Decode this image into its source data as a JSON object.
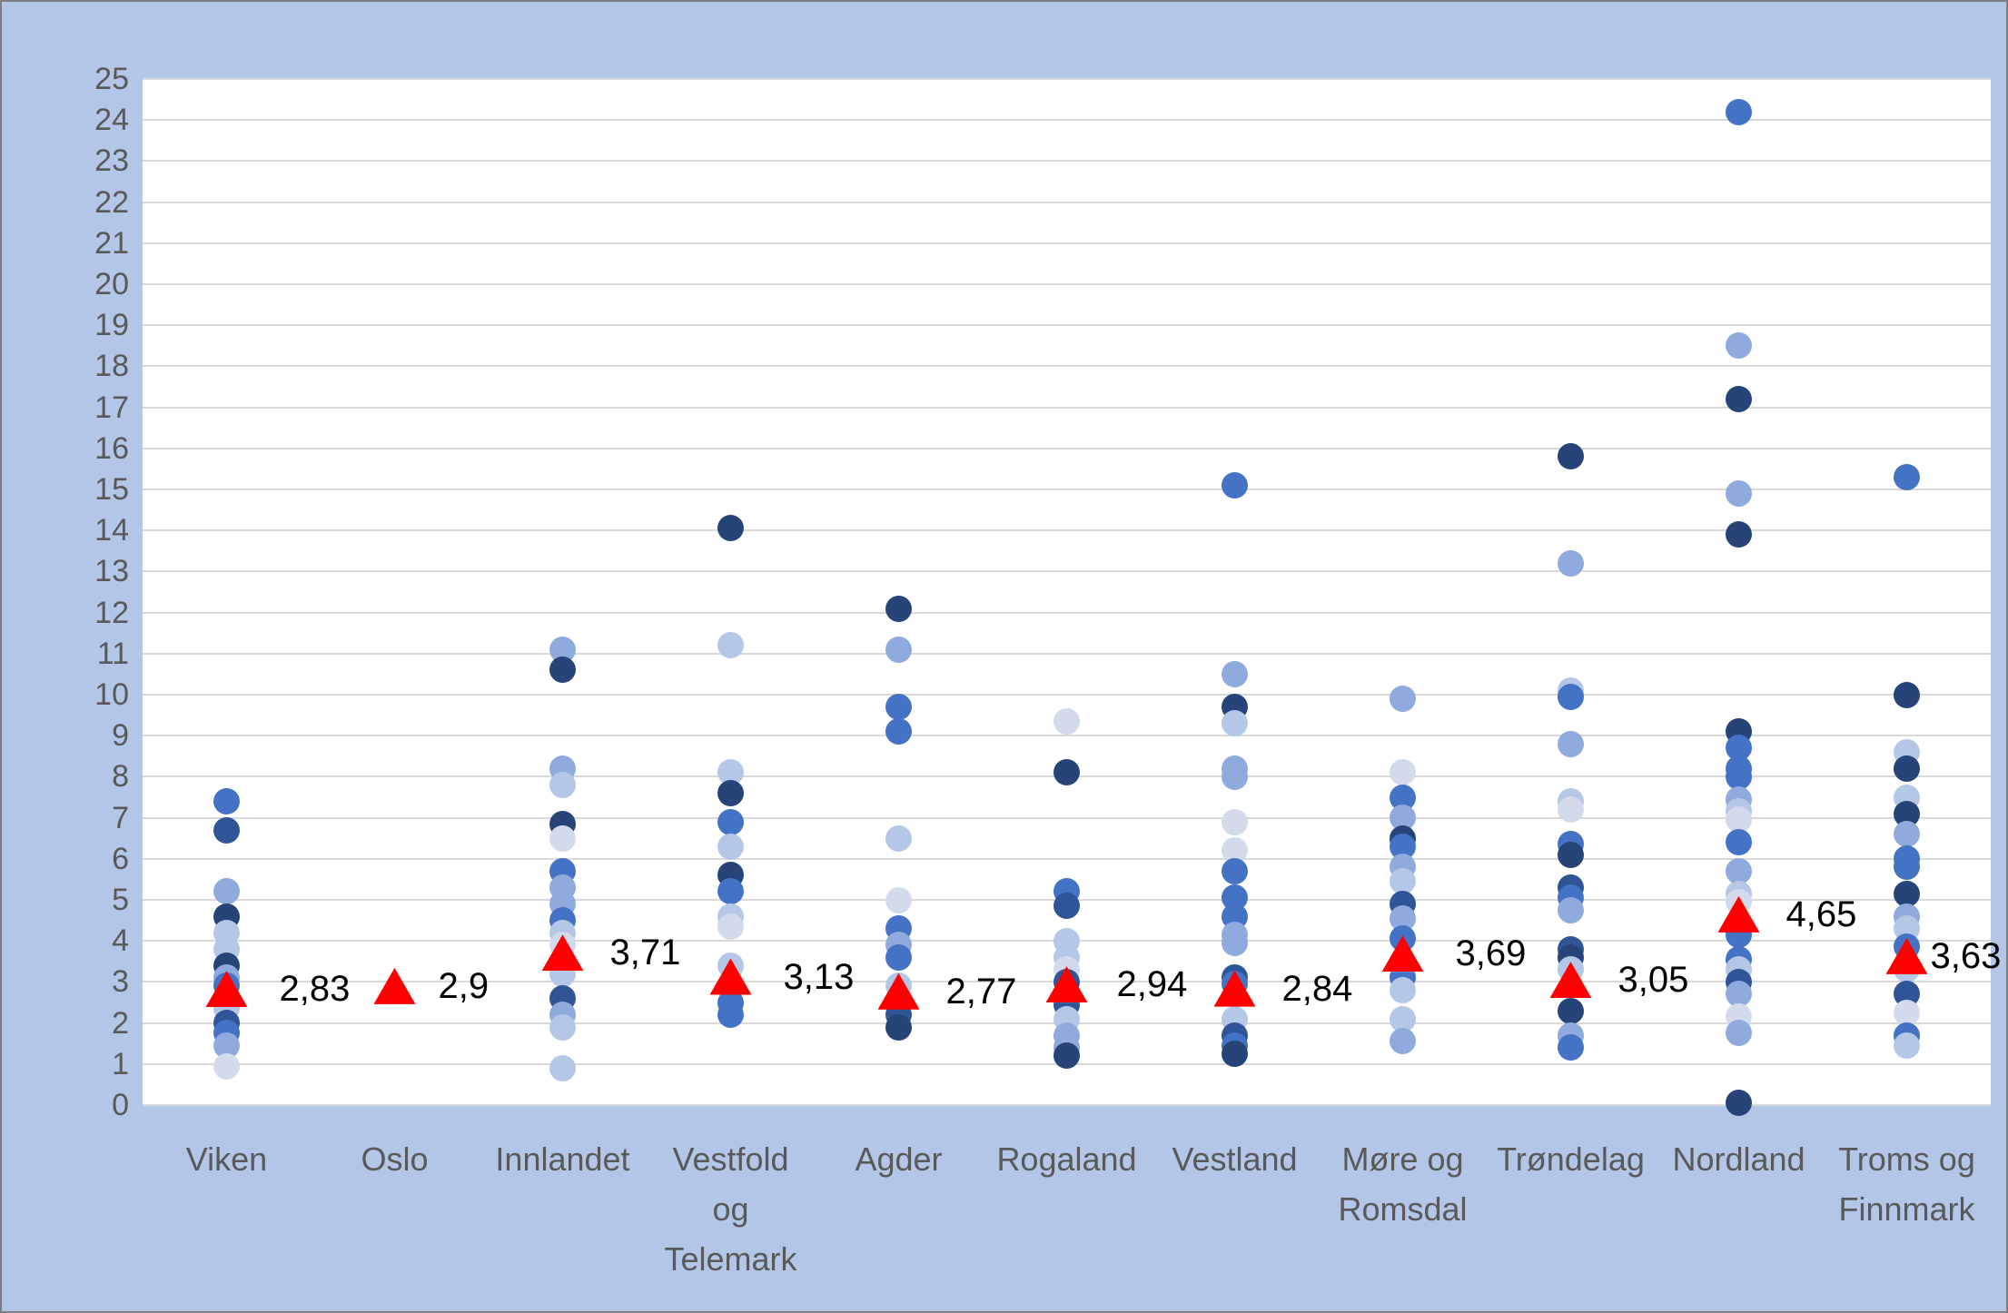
{
  "chart_data": {
    "type": "scatter",
    "title": "",
    "xlabel": "",
    "ylabel": "",
    "ylim": [
      0,
      25
    ],
    "ytick_step": 1,
    "yticks": [
      0,
      1,
      2,
      3,
      4,
      5,
      6,
      7,
      8,
      9,
      10,
      11,
      12,
      13,
      14,
      15,
      16,
      17,
      18,
      19,
      20,
      21,
      22,
      23,
      24,
      25
    ],
    "grid": "horizontal-major",
    "legend": "none",
    "marker_note": "blue circles = individual values per county; red triangle = county mean with data label (comma decimal)",
    "categories": [
      "Viken",
      "Oslo",
      "Innlandet",
      "Vestfold og Telemark",
      "Agder",
      "Rogaland",
      "Vestland",
      "Møre og Romsdal",
      "Trøndelag",
      "Nordland",
      "Troms og Finnmark"
    ],
    "counties": [
      {
        "name": "Viken",
        "name_lines": [
          "Viken"
        ],
        "mean": 2.83,
        "mean_label": "2,83",
        "label_dx": 58,
        "points": [
          {
            "v": 7.4,
            "c": "medium"
          },
          {
            "v": 6.7,
            "c": "mediumdark"
          },
          {
            "v": 5.2,
            "c": "mediumlight"
          },
          {
            "v": 4.6,
            "c": "dark"
          },
          {
            "v": 4.2,
            "c": "light"
          },
          {
            "v": 3.8,
            "c": "light"
          },
          {
            "v": 3.4,
            "c": "dark"
          },
          {
            "v": 3.1,
            "c": "mediumlight"
          },
          {
            "v": 2.9,
            "c": "medium"
          },
          {
            "v": 2.6,
            "c": "mediumdark"
          },
          {
            "v": 2.35,
            "c": "light"
          },
          {
            "v": 2.0,
            "c": "mediumdark"
          },
          {
            "v": 1.75,
            "c": "medium"
          },
          {
            "v": 1.45,
            "c": "mediumlight"
          },
          {
            "v": 0.95,
            "c": "verylight"
          }
        ]
      },
      {
        "name": "Oslo",
        "name_lines": [
          "Oslo"
        ],
        "mean": 2.9,
        "mean_label": "2,9",
        "label_dx": 48,
        "points": []
      },
      {
        "name": "Innlandet",
        "name_lines": [
          "Innlandet"
        ],
        "mean": 3.71,
        "mean_label": "3,71",
        "label_dx": 52,
        "points": [
          {
            "v": 11.1,
            "c": "mediumlight"
          },
          {
            "v": 10.6,
            "c": "dark"
          },
          {
            "v": 8.2,
            "c": "mediumlight"
          },
          {
            "v": 7.8,
            "c": "light"
          },
          {
            "v": 6.85,
            "c": "dark"
          },
          {
            "v": 6.5,
            "c": "verylight"
          },
          {
            "v": 5.7,
            "c": "medium"
          },
          {
            "v": 5.3,
            "c": "mediumlight"
          },
          {
            "v": 4.9,
            "c": "mediumlight"
          },
          {
            "v": 4.5,
            "c": "medium"
          },
          {
            "v": 4.2,
            "c": "light"
          },
          {
            "v": 3.9,
            "c": "verylight"
          },
          {
            "v": 3.5,
            "c": "mediumdark"
          },
          {
            "v": 3.2,
            "c": "light"
          },
          {
            "v": 2.6,
            "c": "mediumdark"
          },
          {
            "v": 2.2,
            "c": "mediumlight"
          },
          {
            "v": 1.9,
            "c": "light"
          },
          {
            "v": 0.9,
            "c": "light"
          }
        ]
      },
      {
        "name": "Vestfold og Telemark",
        "name_lines": [
          "Vestfold",
          "og",
          "Telemark"
        ],
        "mean": 3.13,
        "mean_label": "3,13",
        "label_dx": 58,
        "points": [
          {
            "v": 14.05,
            "c": "dark"
          },
          {
            "v": 11.2,
            "c": "light"
          },
          {
            "v": 8.1,
            "c": "light"
          },
          {
            "v": 7.6,
            "c": "dark"
          },
          {
            "v": 6.9,
            "c": "medium"
          },
          {
            "v": 6.3,
            "c": "light"
          },
          {
            "v": 5.6,
            "c": "dark"
          },
          {
            "v": 5.2,
            "c": "medium"
          },
          {
            "v": 4.6,
            "c": "light"
          },
          {
            "v": 4.35,
            "c": "verylight"
          },
          {
            "v": 3.4,
            "c": "light"
          },
          {
            "v": 2.5,
            "c": "medium"
          },
          {
            "v": 2.2,
            "c": "medium"
          }
        ]
      },
      {
        "name": "Agder",
        "name_lines": [
          "Agder"
        ],
        "mean": 2.77,
        "mean_label": "2,77",
        "label_dx": 52,
        "points": [
          {
            "v": 12.1,
            "c": "dark"
          },
          {
            "v": 11.1,
            "c": "mediumlight"
          },
          {
            "v": 9.7,
            "c": "medium"
          },
          {
            "v": 9.1,
            "c": "medium"
          },
          {
            "v": 6.5,
            "c": "light"
          },
          {
            "v": 5.0,
            "c": "verylight"
          },
          {
            "v": 4.3,
            "c": "medium"
          },
          {
            "v": 3.9,
            "c": "mediumlight"
          },
          {
            "v": 3.6,
            "c": "medium"
          },
          {
            "v": 2.9,
            "c": "light"
          },
          {
            "v": 2.2,
            "c": "mediumdark"
          },
          {
            "v": 1.9,
            "c": "dark"
          }
        ]
      },
      {
        "name": "Rogaland",
        "name_lines": [
          "Rogaland"
        ],
        "mean": 2.94,
        "mean_label": "2,94",
        "label_dx": 55,
        "points": [
          {
            "v": 9.35,
            "c": "verylight"
          },
          {
            "v": 8.1,
            "c": "dark"
          },
          {
            "v": 5.2,
            "c": "medium"
          },
          {
            "v": 4.85,
            "c": "mediumdark"
          },
          {
            "v": 4.0,
            "c": "light"
          },
          {
            "v": 3.6,
            "c": "light"
          },
          {
            "v": 3.3,
            "c": "verylight"
          },
          {
            "v": 3.0,
            "c": "mediumdark"
          },
          {
            "v": 2.45,
            "c": "mediumdark"
          },
          {
            "v": 2.1,
            "c": "light"
          },
          {
            "v": 1.7,
            "c": "mediumlight"
          },
          {
            "v": 1.4,
            "c": "mediumlight"
          },
          {
            "v": 1.2,
            "c": "dark"
          }
        ]
      },
      {
        "name": "Vestland",
        "name_lines": [
          "Vestland"
        ],
        "mean": 2.84,
        "mean_label": "2,84",
        "label_dx": 52,
        "points": [
          {
            "v": 15.1,
            "c": "medium"
          },
          {
            "v": 10.5,
            "c": "mediumlight"
          },
          {
            "v": 9.7,
            "c": "dark"
          },
          {
            "v": 9.3,
            "c": "light"
          },
          {
            "v": 8.2,
            "c": "mediumlight"
          },
          {
            "v": 8.0,
            "c": "mediumlight"
          },
          {
            "v": 6.9,
            "c": "verylight"
          },
          {
            "v": 6.2,
            "c": "verylight"
          },
          {
            "v": 5.7,
            "c": "medium"
          },
          {
            "v": 5.05,
            "c": "medium"
          },
          {
            "v": 4.6,
            "c": "medium"
          },
          {
            "v": 4.15,
            "c": "mediumlight"
          },
          {
            "v": 3.95,
            "c": "mediumlight"
          },
          {
            "v": 3.1,
            "c": "mediumdark"
          },
          {
            "v": 2.95,
            "c": "medium"
          },
          {
            "v": 2.1,
            "c": "light"
          },
          {
            "v": 1.7,
            "c": "mediumdark"
          },
          {
            "v": 1.45,
            "c": "medium"
          },
          {
            "v": 1.25,
            "c": "dark"
          }
        ]
      },
      {
        "name": "Møre og Romsdal",
        "name_lines": [
          "Møre og",
          "Romsdal"
        ],
        "mean": 3.69,
        "mean_label": "3,69",
        "label_dx": 58,
        "points": [
          {
            "v": 9.9,
            "c": "mediumlight"
          },
          {
            "v": 8.1,
            "c": "verylight"
          },
          {
            "v": 7.5,
            "c": "medium"
          },
          {
            "v": 7.0,
            "c": "mediumlight"
          },
          {
            "v": 6.5,
            "c": "dark"
          },
          {
            "v": 6.3,
            "c": "medium"
          },
          {
            "v": 5.8,
            "c": "mediumlight"
          },
          {
            "v": 5.45,
            "c": "light"
          },
          {
            "v": 4.9,
            "c": "mediumdark"
          },
          {
            "v": 4.55,
            "c": "mediumlight"
          },
          {
            "v": 4.05,
            "c": "medium"
          },
          {
            "v": 3.1,
            "c": "medium"
          },
          {
            "v": 2.8,
            "c": "light"
          },
          {
            "v": 2.1,
            "c": "light"
          },
          {
            "v": 1.55,
            "c": "mediumlight"
          }
        ]
      },
      {
        "name": "Trøndelag",
        "name_lines": [
          "Trøndelag"
        ],
        "mean": 3.05,
        "mean_label": "3,05",
        "label_dx": 52,
        "points": [
          {
            "v": 15.8,
            "c": "dark"
          },
          {
            "v": 13.2,
            "c": "mediumlight"
          },
          {
            "v": 10.1,
            "c": "light"
          },
          {
            "v": 9.95,
            "c": "medium"
          },
          {
            "v": 8.8,
            "c": "mediumlight"
          },
          {
            "v": 7.4,
            "c": "light"
          },
          {
            "v": 7.2,
            "c": "verylight"
          },
          {
            "v": 6.35,
            "c": "medium"
          },
          {
            "v": 6.1,
            "c": "dark"
          },
          {
            "v": 5.3,
            "c": "mediumdark"
          },
          {
            "v": 5.05,
            "c": "medium"
          },
          {
            "v": 4.75,
            "c": "mediumlight"
          },
          {
            "v": 3.8,
            "c": "mediumdark"
          },
          {
            "v": 3.6,
            "c": "dark"
          },
          {
            "v": 3.3,
            "c": "light"
          },
          {
            "v": 2.3,
            "c": "dark"
          },
          {
            "v": 1.7,
            "c": "mediumlight"
          },
          {
            "v": 1.4,
            "c": "medium"
          }
        ]
      },
      {
        "name": "Nordland",
        "name_lines": [
          "Nordland"
        ],
        "mean": 4.65,
        "mean_label": "4,65",
        "label_dx": 52,
        "points": [
          {
            "v": 24.2,
            "c": "medium"
          },
          {
            "v": 18.5,
            "c": "mediumlight"
          },
          {
            "v": 17.2,
            "c": "dark"
          },
          {
            "v": 14.9,
            "c": "mediumlight"
          },
          {
            "v": 13.9,
            "c": "dark"
          },
          {
            "v": 9.1,
            "c": "dark"
          },
          {
            "v": 8.7,
            "c": "medium"
          },
          {
            "v": 8.2,
            "c": "medium"
          },
          {
            "v": 8.0,
            "c": "medium"
          },
          {
            "v": 7.45,
            "c": "mediumlight"
          },
          {
            "v": 7.15,
            "c": "light"
          },
          {
            "v": 6.95,
            "c": "verylight"
          },
          {
            "v": 6.4,
            "c": "medium"
          },
          {
            "v": 5.7,
            "c": "mediumlight"
          },
          {
            "v": 5.15,
            "c": "light"
          },
          {
            "v": 4.95,
            "c": "verylight"
          },
          {
            "v": 4.15,
            "c": "medium"
          },
          {
            "v": 3.55,
            "c": "medium"
          },
          {
            "v": 3.3,
            "c": "light"
          },
          {
            "v": 3.0,
            "c": "mediumdark"
          },
          {
            "v": 2.7,
            "c": "mediumlight"
          },
          {
            "v": 2.15,
            "c": "verylight"
          },
          {
            "v": 1.75,
            "c": "mediumlight"
          },
          {
            "v": 0.05,
            "c": "dark"
          }
        ]
      },
      {
        "name": "Troms og Finnmark",
        "name_lines": [
          "Troms og",
          "Finnmark"
        ],
        "mean": 3.63,
        "mean_label": "3,63",
        "label_dx": 26,
        "points": [
          {
            "v": 15.3,
            "c": "medium"
          },
          {
            "v": 10.0,
            "c": "dark"
          },
          {
            "v": 8.6,
            "c": "light"
          },
          {
            "v": 8.2,
            "c": "dark"
          },
          {
            "v": 7.5,
            "c": "light"
          },
          {
            "v": 7.1,
            "c": "dark"
          },
          {
            "v": 6.6,
            "c": "mediumlight"
          },
          {
            "v": 6.0,
            "c": "medium"
          },
          {
            "v": 5.8,
            "c": "medium"
          },
          {
            "v": 5.15,
            "c": "dark"
          },
          {
            "v": 4.6,
            "c": "mediumlight"
          },
          {
            "v": 4.3,
            "c": "light"
          },
          {
            "v": 3.85,
            "c": "medium"
          },
          {
            "v": 3.3,
            "c": "light"
          },
          {
            "v": 2.7,
            "c": "mediumdark"
          },
          {
            "v": 2.25,
            "c": "verylight"
          },
          {
            "v": 1.7,
            "c": "medium"
          },
          {
            "v": 1.45,
            "c": "light"
          }
        ]
      }
    ]
  },
  "colors": {
    "background": "#b4c6e7",
    "frame_border": "#7f7f7f",
    "plot_background": "#ffffff",
    "gridline": "#d9d9d9",
    "axis_text": "#595959",
    "mean_label_text": "#000000",
    "mean_marker": "#ff0000",
    "dot_palette": {
      "dark": "#264478",
      "mediumdark": "#2f5597",
      "medium": "#4472c4",
      "mediumlight": "#8faadc",
      "light": "#b4c7e7",
      "verylight": "#d2daec"
    }
  }
}
